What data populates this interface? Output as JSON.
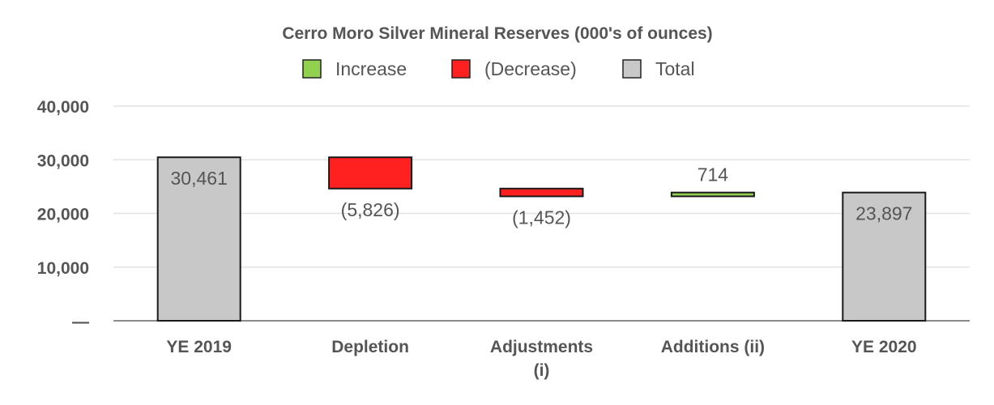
{
  "chart_data": {
    "type": "bar",
    "subtype": "waterfall",
    "title": "Cerro Moro Silver Mineral Reserves (000's of ounces)",
    "xlabel": "",
    "ylabel": "",
    "ylim": [
      0,
      40000
    ],
    "yticks": [
      0,
      10000,
      20000,
      30000,
      40000
    ],
    "ytick_labels": [
      "—",
      "10,000",
      "20,000",
      "30,000",
      "40,000"
    ],
    "grid": true,
    "legend_position": "top",
    "legend": [
      {
        "name": "Increase",
        "color": "#92d050"
      },
      {
        "name": "(Decrease)",
        "color": "#ff2020"
      },
      {
        "name": "Total",
        "color": "#c8c8c8"
      }
    ],
    "categories": [
      "YE 2019",
      "Depletion",
      "Adjustments\n(i)",
      "Additions (ii)",
      "YE 2020"
    ],
    "steps": [
      {
        "kind": "total",
        "value": 30461,
        "label": "30,461"
      },
      {
        "kind": "decrease",
        "value": -5826,
        "label": "(5,826)"
      },
      {
        "kind": "decrease",
        "value": -1452,
        "label": "(1,452)"
      },
      {
        "kind": "increase",
        "value": 714,
        "label": "714"
      },
      {
        "kind": "total",
        "value": 23897,
        "label": "23,897"
      }
    ]
  }
}
